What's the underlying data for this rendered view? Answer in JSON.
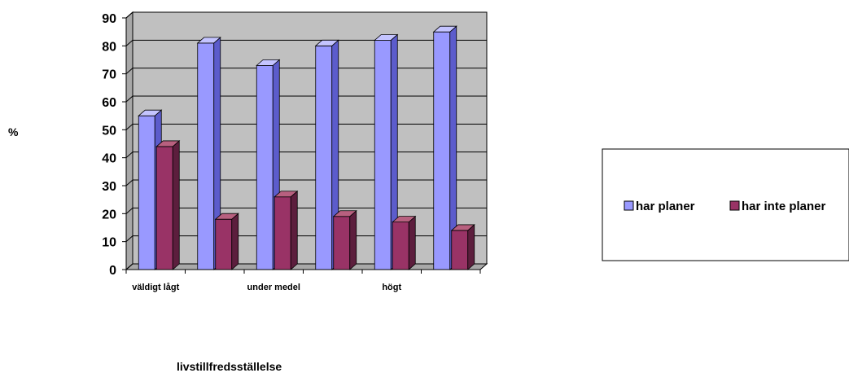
{
  "chart_data": {
    "type": "bar",
    "style": "3d-clustered-column",
    "categories": [
      "väldigt lågt",
      "",
      "under medel",
      "",
      "högt",
      ""
    ],
    "series": [
      {
        "name": "har planer",
        "values": [
          55,
          81,
          73,
          80,
          82,
          85
        ],
        "color": "#9999ff",
        "side_color": "#5c5ccc",
        "top_color": "#c4c4ff"
      },
      {
        "name": "har inte planer",
        "values": [
          44,
          18,
          26,
          19,
          17,
          14
        ],
        "color": "#993366",
        "side_color": "#5c1e3d",
        "top_color": "#b8607f"
      }
    ],
    "xlabel": "livstillfredsställelse",
    "ylabel": "%",
    "ylim": [
      0,
      90
    ],
    "yticks": [
      0,
      10,
      20,
      30,
      40,
      50,
      60,
      70,
      80,
      90
    ],
    "grid": true,
    "wall_color": "#c0c0c0",
    "legend_position": "right"
  }
}
